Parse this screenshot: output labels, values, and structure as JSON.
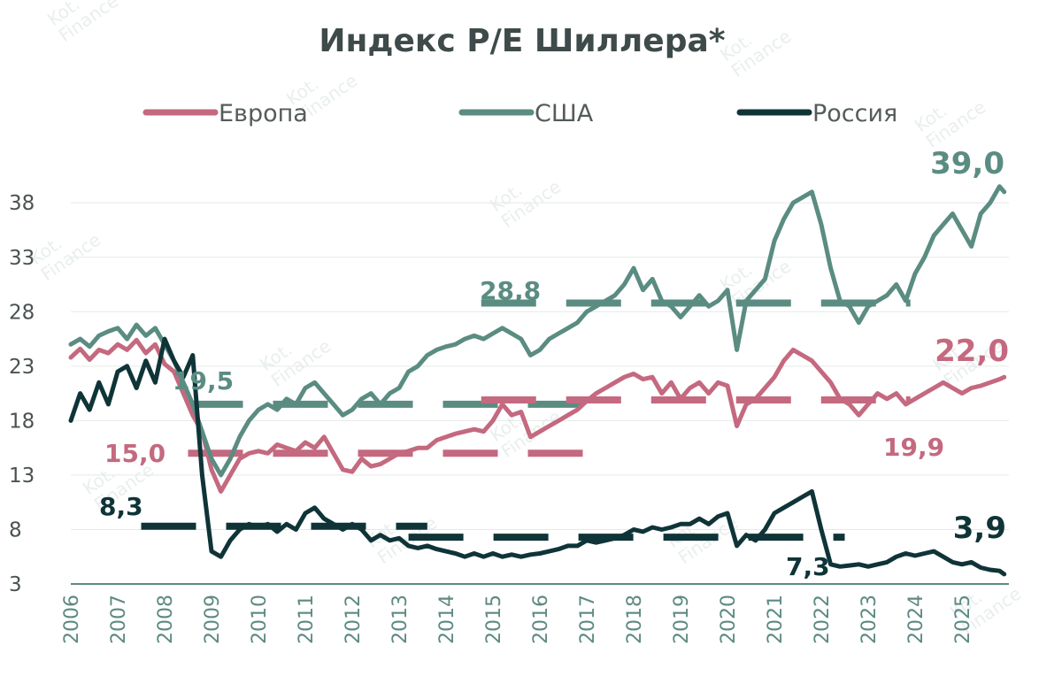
{
  "chart_data": {
    "type": "line",
    "title": "Индекс P/E Шиллера*",
    "xlabel": "",
    "ylabel": "",
    "xlim": [
      2006,
      2026
    ],
    "ylim": [
      3,
      42
    ],
    "y_ticks": [
      "38",
      "33",
      "28",
      "23",
      "18",
      "13",
      "8",
      "3"
    ],
    "y_tick_values": [
      38,
      33,
      28,
      23,
      18,
      13,
      8,
      3
    ],
    "x_ticks": [
      "2006",
      "2007",
      "2008",
      "2009",
      "2010",
      "2011",
      "2012",
      "2013",
      "2014",
      "2015",
      "2016",
      "2017",
      "2018",
      "2019",
      "2020",
      "2021",
      "2022",
      "2023",
      "2024",
      "2025"
    ],
    "legend_position": "top",
    "grid": true,
    "series": [
      {
        "name": "Европа",
        "color": "#c4697f",
        "x": [
          2006.0,
          2006.2,
          2006.4,
          2006.6,
          2006.8,
          2007.0,
          2007.2,
          2007.4,
          2007.6,
          2007.8,
          2008.0,
          2008.2,
          2008.4,
          2008.6,
          2008.8,
          2009.0,
          2009.2,
          2009.4,
          2009.6,
          2009.8,
          2010.0,
          2010.2,
          2010.4,
          2010.6,
          2010.8,
          2011.0,
          2011.2,
          2011.4,
          2011.6,
          2011.8,
          2012.0,
          2012.2,
          2012.4,
          2012.6,
          2012.8,
          2013.0,
          2013.2,
          2013.4,
          2013.6,
          2013.8,
          2014.0,
          2014.2,
          2014.4,
          2014.6,
          2014.8,
          2015.0,
          2015.2,
          2015.4,
          2015.6,
          2015.8,
          2016.0,
          2016.2,
          2016.4,
          2016.6,
          2016.8,
          2017.0,
          2017.2,
          2017.4,
          2017.6,
          2017.8,
          2018.0,
          2018.2,
          2018.4,
          2018.6,
          2018.8,
          2019.0,
          2019.2,
          2019.4,
          2019.6,
          2019.8,
          2020.0,
          2020.2,
          2020.4,
          2020.6,
          2020.8,
          2021.0,
          2021.2,
          2021.4,
          2021.6,
          2021.8,
          2022.0,
          2022.2,
          2022.4,
          2022.6,
          2022.8,
          2023.0,
          2023.2,
          2023.4,
          2023.6,
          2023.8,
          2024.0,
          2024.2,
          2024.4,
          2024.6,
          2024.8,
          2025.0,
          2025.2,
          2025.4,
          2025.6,
          2025.8,
          2025.9
        ],
        "values": [
          23.8,
          24.6,
          23.6,
          24.5,
          24.2,
          25.0,
          24.5,
          25.4,
          24.2,
          25.0,
          23.2,
          22.5,
          20.5,
          18.5,
          17.0,
          13.5,
          11.5,
          13.0,
          14.5,
          15.0,
          15.2,
          15.0,
          15.8,
          15.5,
          15.2,
          16.0,
          15.5,
          16.5,
          15.0,
          13.5,
          13.3,
          14.5,
          13.8,
          14.0,
          14.5,
          15.0,
          15.2,
          15.5,
          15.5,
          16.2,
          16.5,
          16.8,
          17.0,
          17.2,
          17.0,
          18.0,
          19.5,
          18.5,
          18.8,
          16.5,
          17.0,
          17.5,
          18.0,
          18.5,
          19.0,
          19.8,
          20.5,
          21.0,
          21.5,
          22.0,
          22.3,
          21.8,
          22.0,
          20.5,
          21.5,
          20.0,
          21.0,
          21.5,
          20.5,
          21.5,
          21.2,
          17.5,
          19.5,
          20.0,
          21.0,
          22.0,
          23.5,
          24.5,
          24.0,
          23.5,
          22.5,
          21.5,
          20.0,
          19.5,
          18.5,
          19.5,
          20.5,
          20.0,
          20.5,
          19.5,
          20.0,
          20.5,
          21.0,
          21.5,
          21.0,
          20.5,
          21.0,
          21.2,
          21.5,
          21.8,
          22.0
        ]
      },
      {
        "name": "США",
        "color": "#5b8c82",
        "x": [
          2006.0,
          2006.2,
          2006.4,
          2006.6,
          2006.8,
          2007.0,
          2007.2,
          2007.4,
          2007.6,
          2007.8,
          2008.0,
          2008.2,
          2008.4,
          2008.6,
          2008.8,
          2009.0,
          2009.2,
          2009.4,
          2009.6,
          2009.8,
          2010.0,
          2010.2,
          2010.4,
          2010.6,
          2010.8,
          2011.0,
          2011.2,
          2011.4,
          2011.6,
          2011.8,
          2012.0,
          2012.2,
          2012.4,
          2012.6,
          2012.8,
          2013.0,
          2013.2,
          2013.4,
          2013.6,
          2013.8,
          2014.0,
          2014.2,
          2014.4,
          2014.6,
          2014.8,
          2015.0,
          2015.2,
          2015.4,
          2015.6,
          2015.8,
          2016.0,
          2016.2,
          2016.4,
          2016.6,
          2016.8,
          2017.0,
          2017.2,
          2017.4,
          2017.6,
          2017.8,
          2018.0,
          2018.2,
          2018.4,
          2018.6,
          2018.8,
          2019.0,
          2019.2,
          2019.4,
          2019.6,
          2019.8,
          2020.0,
          2020.2,
          2020.4,
          2020.6,
          2020.8,
          2021.0,
          2021.2,
          2021.4,
          2021.6,
          2021.8,
          2022.0,
          2022.2,
          2022.4,
          2022.6,
          2022.8,
          2023.0,
          2023.2,
          2023.4,
          2023.6,
          2023.8,
          2024.0,
          2024.2,
          2024.4,
          2024.6,
          2024.8,
          2025.0,
          2025.2,
          2025.4,
          2025.6,
          2025.8,
          2025.9
        ],
        "values": [
          25.0,
          25.5,
          24.8,
          25.8,
          26.2,
          26.5,
          25.5,
          26.8,
          25.8,
          26.5,
          25.0,
          23.5,
          21.5,
          19.5,
          17.0,
          14.5,
          13.0,
          14.5,
          16.5,
          18.0,
          19.0,
          19.5,
          19.0,
          20.0,
          19.5,
          21.0,
          21.5,
          20.5,
          19.5,
          18.5,
          19.0,
          20.0,
          20.5,
          19.5,
          20.5,
          21.0,
          22.5,
          23.0,
          24.0,
          24.5,
          24.8,
          25.0,
          25.5,
          25.8,
          25.5,
          26.0,
          26.5,
          26.0,
          25.5,
          24.0,
          24.5,
          25.5,
          26.0,
          26.5,
          27.0,
          28.0,
          28.5,
          29.0,
          29.5,
          30.5,
          32.0,
          30.0,
          31.0,
          29.0,
          28.5,
          27.5,
          28.5,
          29.5,
          28.5,
          29.0,
          30.0,
          24.5,
          29.0,
          30.0,
          31.0,
          34.5,
          36.5,
          38.0,
          38.5,
          39.0,
          36.0,
          32.0,
          29.0,
          28.5,
          27.0,
          28.5,
          29.0,
          29.5,
          30.5,
          29.0,
          31.5,
          33.0,
          35.0,
          36.0,
          37.0,
          35.5,
          34.0,
          37.0,
          38.0,
          39.5,
          39.0
        ]
      },
      {
        "name": "Россия",
        "color": "#0f3438",
        "x": [
          2006.0,
          2006.2,
          2006.4,
          2006.6,
          2006.8,
          2007.0,
          2007.2,
          2007.4,
          2007.6,
          2007.8,
          2008.0,
          2008.2,
          2008.4,
          2008.6,
          2008.8,
          2009.0,
          2009.2,
          2009.4,
          2009.6,
          2009.8,
          2010.0,
          2010.2,
          2010.4,
          2010.6,
          2010.8,
          2011.0,
          2011.2,
          2011.4,
          2011.6,
          2011.8,
          2012.0,
          2012.2,
          2012.4,
          2012.6,
          2012.8,
          2013.0,
          2013.2,
          2013.4,
          2013.6,
          2013.8,
          2014.0,
          2014.2,
          2014.4,
          2014.6,
          2014.8,
          2015.0,
          2015.2,
          2015.4,
          2015.6,
          2015.8,
          2016.0,
          2016.2,
          2016.4,
          2016.6,
          2016.8,
          2017.0,
          2017.2,
          2017.4,
          2017.6,
          2017.8,
          2018.0,
          2018.2,
          2018.4,
          2018.6,
          2018.8,
          2019.0,
          2019.2,
          2019.4,
          2019.6,
          2019.8,
          2020.0,
          2020.2,
          2020.4,
          2020.6,
          2020.8,
          2021.0,
          2021.2,
          2021.4,
          2021.6,
          2021.8,
          2022.0,
          2022.2,
          2022.4,
          2022.6,
          2022.8,
          2023.0,
          2023.2,
          2023.4,
          2023.6,
          2023.8,
          2024.0,
          2024.2,
          2024.4,
          2024.6,
          2024.8,
          2025.0,
          2025.2,
          2025.4,
          2025.6,
          2025.8,
          2025.9
        ],
        "values": [
          18.0,
          20.5,
          19.0,
          21.5,
          19.5,
          22.5,
          23.0,
          21.0,
          23.5,
          21.5,
          25.5,
          23.5,
          22.0,
          24.0,
          13.0,
          6.0,
          5.5,
          7.0,
          8.0,
          8.5,
          8.2,
          8.5,
          7.8,
          8.5,
          8.0,
          9.5,
          10.0,
          9.0,
          8.5,
          8.0,
          8.5,
          8.0,
          7.0,
          7.5,
          7.0,
          7.2,
          6.5,
          6.3,
          6.5,
          6.2,
          6.0,
          5.8,
          5.5,
          5.8,
          5.5,
          5.8,
          5.5,
          5.7,
          5.5,
          5.7,
          5.8,
          6.0,
          6.2,
          6.5,
          6.5,
          7.0,
          6.8,
          7.0,
          7.2,
          7.5,
          8.0,
          7.8,
          8.2,
          8.0,
          8.2,
          8.5,
          8.5,
          9.0,
          8.5,
          9.2,
          9.5,
          6.5,
          7.5,
          7.0,
          8.0,
          9.5,
          10.0,
          10.5,
          11.0,
          11.5,
          8.0,
          4.8,
          4.6,
          4.7,
          4.8,
          4.6,
          4.8,
          5.0,
          5.5,
          5.8,
          5.6,
          5.8,
          6.0,
          5.5,
          5.0,
          4.8,
          5.0,
          4.5,
          4.3,
          4.2,
          3.9
        ]
      }
    ],
    "reference_lines": [
      {
        "series": "США",
        "value": 19.5,
        "x_range": [
          2008.5,
          2017.5
        ],
        "label": "19,5"
      },
      {
        "series": "США",
        "value": 28.8,
        "x_range": [
          2014.75,
          2023.9
        ],
        "label": "28,8"
      },
      {
        "series": "Европа",
        "value": 15.0,
        "x_range": [
          2008.5,
          2017.5
        ],
        "label": "15,0"
      },
      {
        "series": "Европа",
        "value": 19.9,
        "x_range": [
          2014.75,
          2023.9
        ],
        "label": "19,9"
      },
      {
        "series": "Россия",
        "value": 8.3,
        "x_range": [
          2007.5,
          2013.6
        ],
        "label": "8,3"
      },
      {
        "series": "Россия",
        "value": 7.3,
        "x_range": [
          2013.2,
          2022.5
        ],
        "label": "7,3"
      }
    ],
    "end_labels": [
      {
        "series": "США",
        "label": "39,0"
      },
      {
        "series": "Европа",
        "label": "22,0"
      },
      {
        "series": "Россия",
        "label": "3,9"
      }
    ]
  },
  "watermark": {
    "brand": "Kot.",
    "sub": "Finance"
  }
}
